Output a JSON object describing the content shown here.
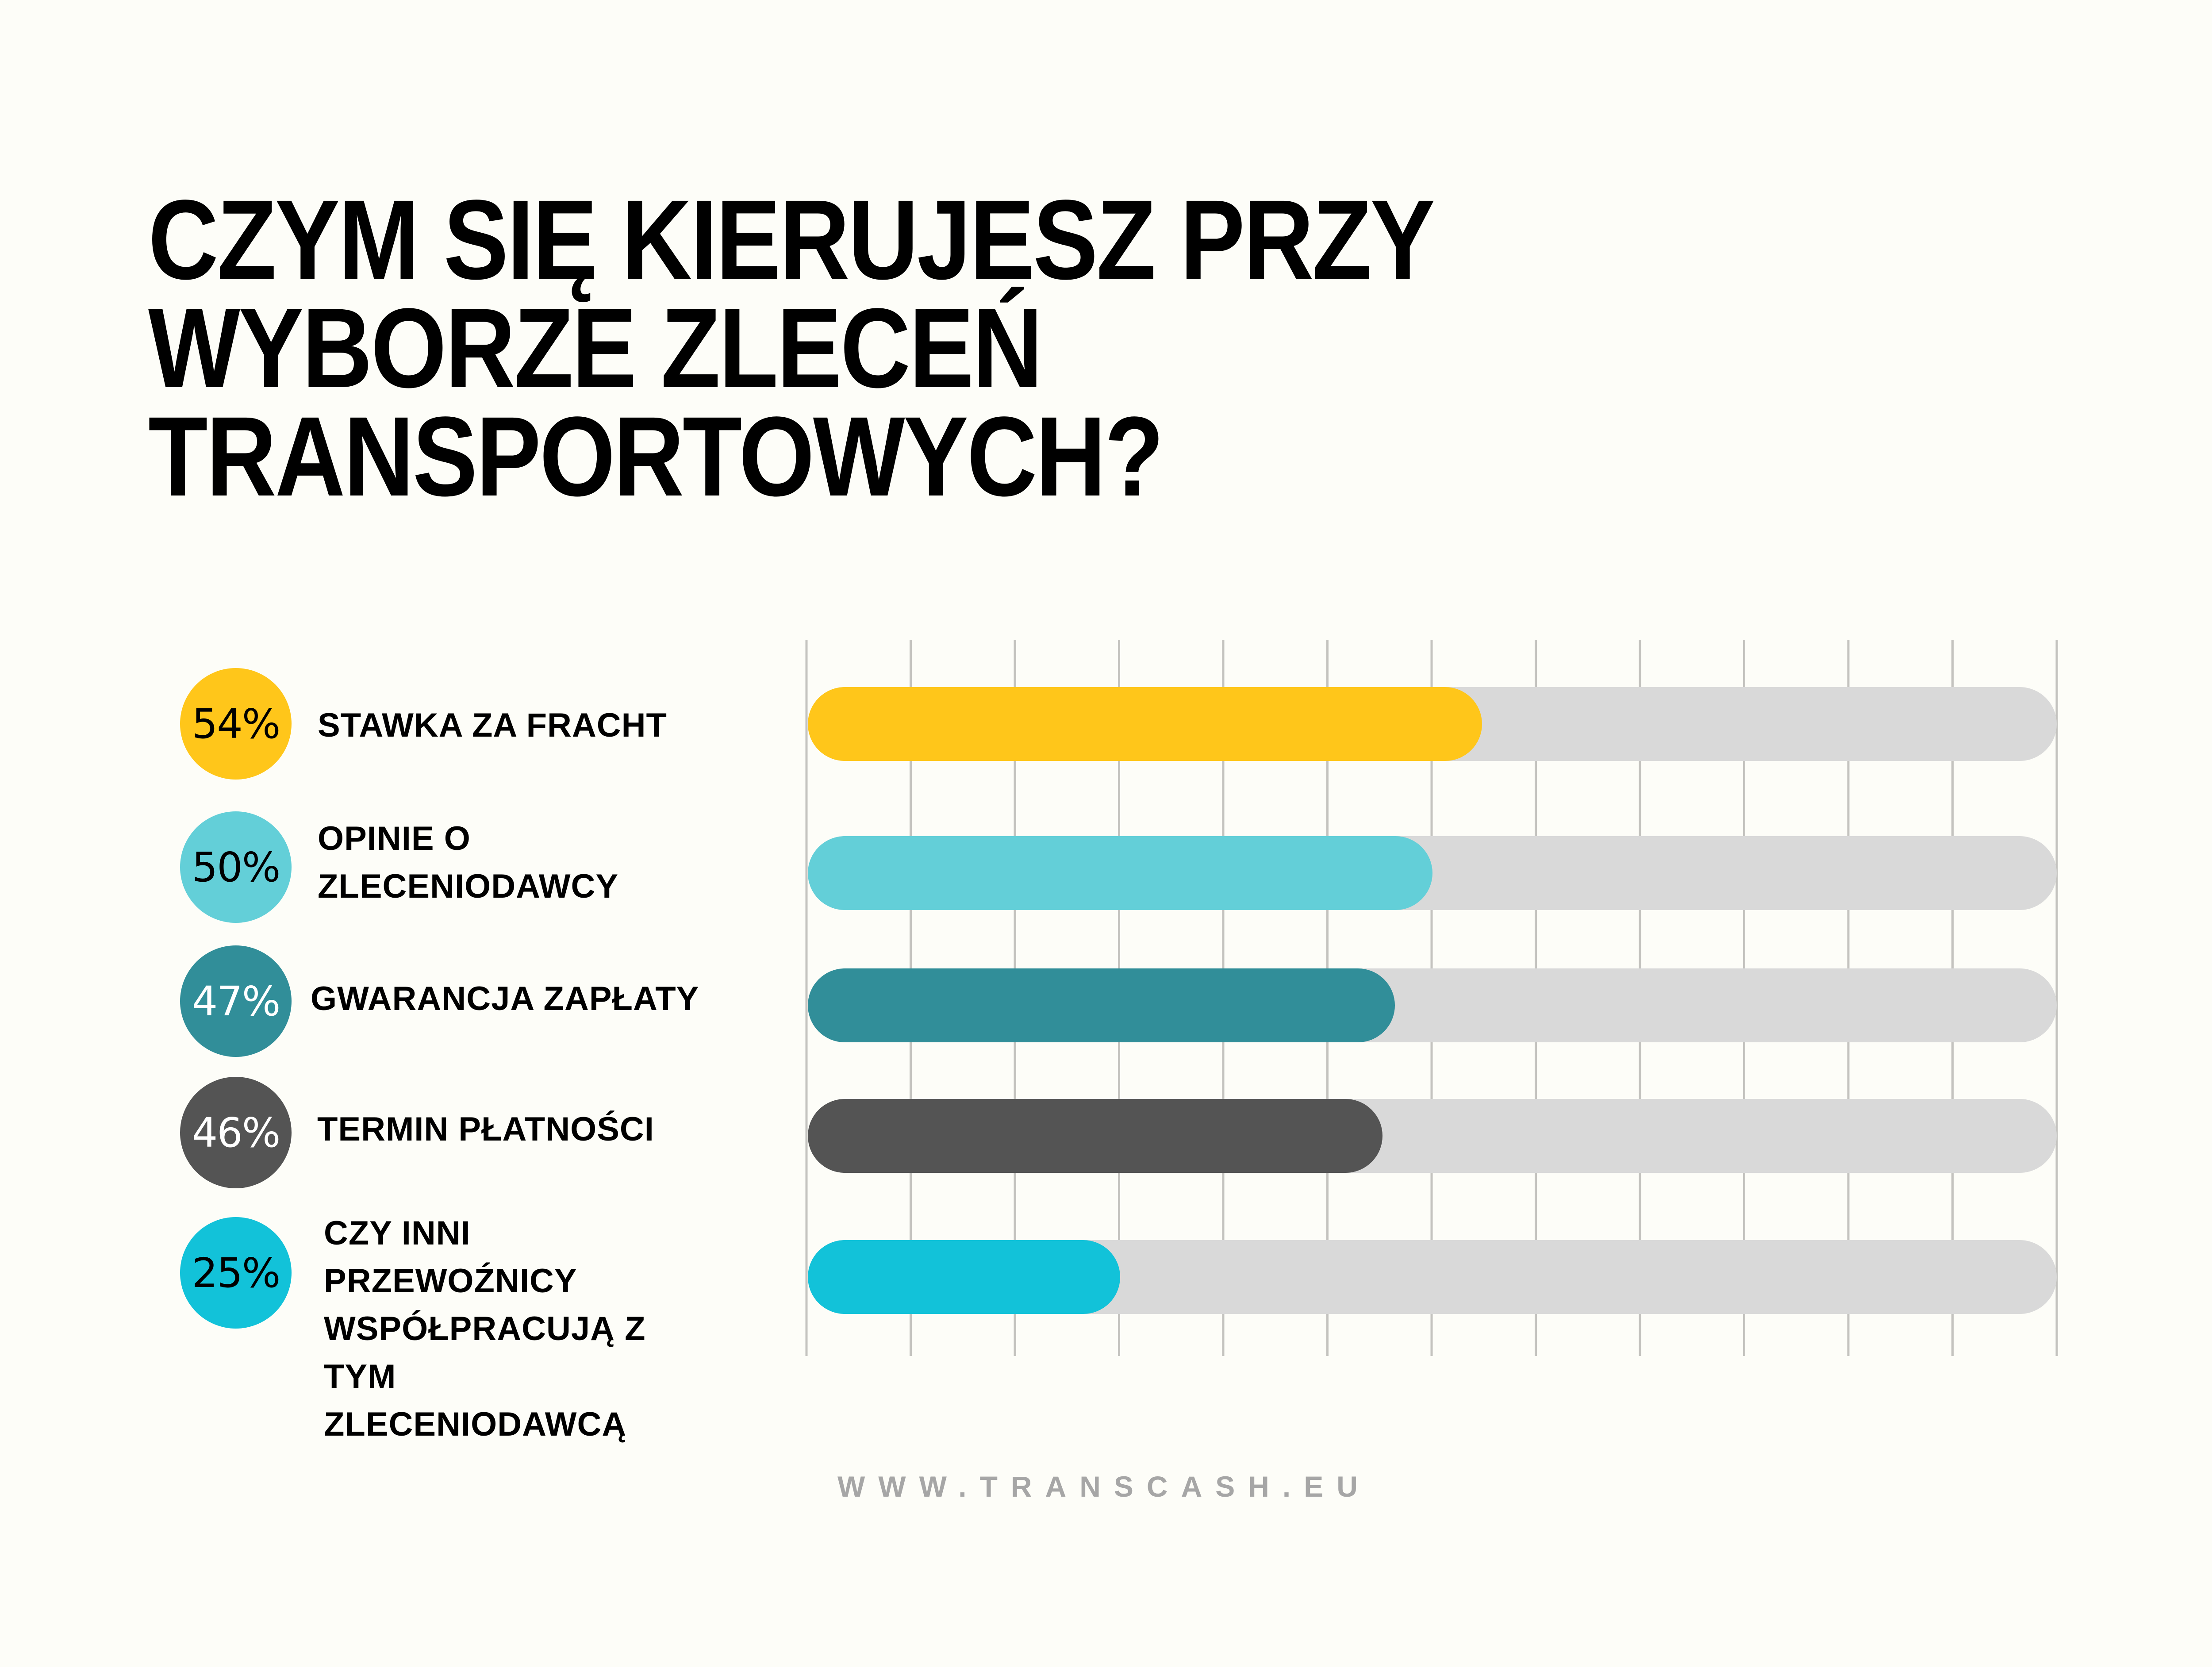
{
  "title": {
    "lines": [
      "CZYM SIĘ KIERUJESZ PRZY",
      "WYBORZE ZLECEŃ",
      "TRANSPORTOWYCH?"
    ]
  },
  "footer": {
    "url": "WWW.TRANSCASH.EU"
  },
  "colors": {
    "background": "#FDFDF8",
    "track": "#D9D9D9",
    "grid": "#C4C3BF"
  },
  "chart_data": {
    "type": "bar",
    "orientation": "horizontal",
    "title": "CZYM SIĘ KIERUJESZ PRZY WYBORZE ZLECEŃ TRANSPORTOWYCH?",
    "xlim": [
      0,
      100
    ],
    "grid": true,
    "grid_divisions": 12,
    "categories": [
      "STAWKA ZA FRACHT",
      "OPINIE O\nZLECENIODAWCY",
      "GWARANCJA ZAPŁATY",
      "TERMIN PŁATNOŚCI",
      "CZY INNI\nPRZEWOŹNICY\nWSPÓŁPRACUJĄ Z\nTYM\nZLECENIODAWCĄ"
    ],
    "values": [
      54,
      50,
      47,
      46,
      25
    ],
    "value_labels": [
      "54%",
      "50%",
      "47%",
      "46%",
      "25%"
    ],
    "bar_colors": [
      "#FFC61A",
      "#63CFD8",
      "#318E99",
      "#545454",
      "#12C2D9"
    ],
    "label_text_colors": [
      "#000000",
      "#000000",
      "#FFFFFF",
      "#FFFFFF",
      "#000000"
    ]
  }
}
